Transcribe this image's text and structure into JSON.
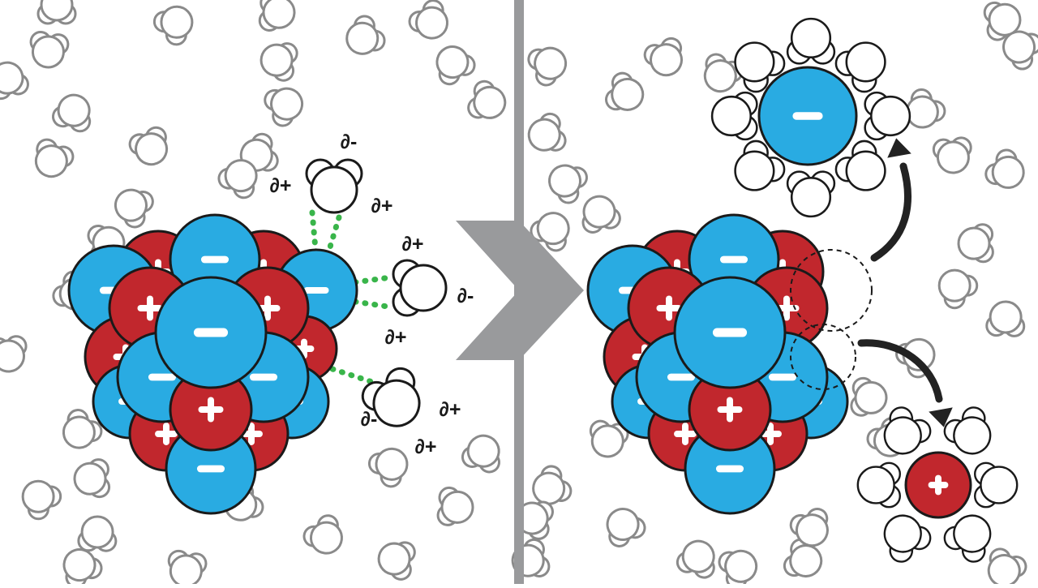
{
  "colors": {
    "anion": "#29abe2",
    "cation": "#c1272d",
    "outline": "#1a1a1a",
    "bond": "#39b54a",
    "divider": "#999a9c",
    "bg_water": "#8a8a8a",
    "arrow": "#222222"
  },
  "icons": {
    "anion_symbol": "minus-icon",
    "cation_symbol": "plus-icon",
    "transition": "chevron-right-icon",
    "motion": "curved-arrow-icon"
  },
  "labels": {
    "delta_minus": "∂-",
    "delta_plus": "∂+"
  },
  "panels": [
    {
      "name": "before-dissolving"
    },
    {
      "name": "after-dissolving"
    }
  ]
}
